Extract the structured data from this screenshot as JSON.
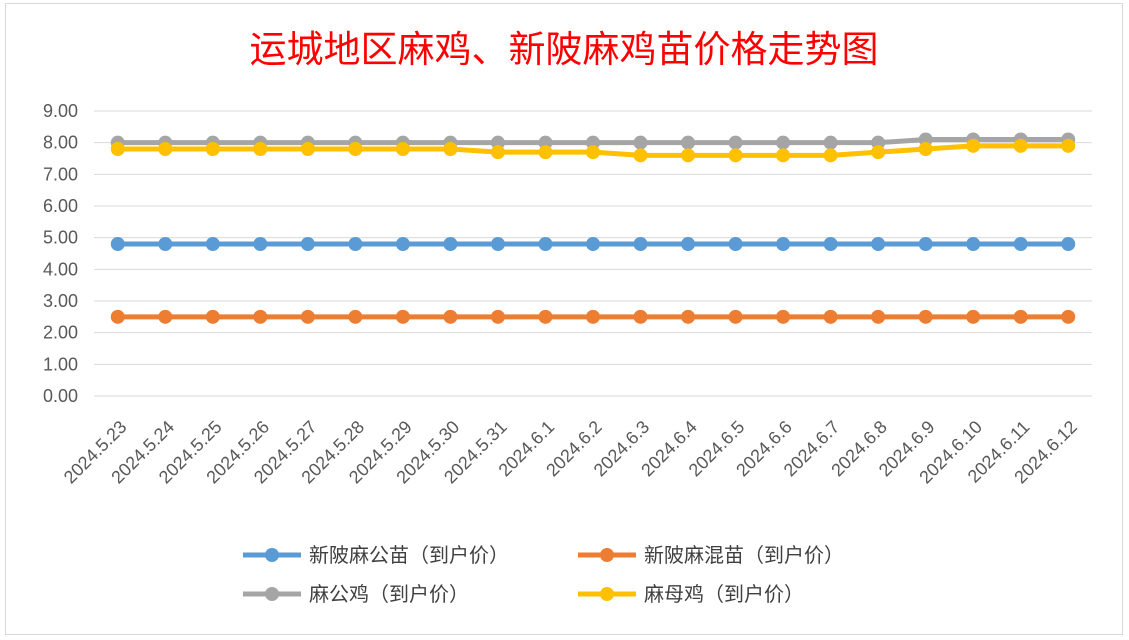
{
  "chart_data": {
    "type": "line",
    "title": "运城地区麻鸡、新陂麻鸡苗价格走势图",
    "xlabel": "",
    "ylabel": "",
    "ylim": [
      0,
      9
    ],
    "ytick_labels": [
      "0.00",
      "1.00",
      "2.00",
      "3.00",
      "4.00",
      "5.00",
      "6.00",
      "7.00",
      "8.00",
      "9.00"
    ],
    "grid": true,
    "legend_position": "bottom",
    "categories": [
      "2024.5.23",
      "2024.5.24",
      "2024.5.25",
      "2024.5.26",
      "2024.5.27",
      "2024.5.28",
      "2024.5.29",
      "2024.5.30",
      "2024.5.31",
      "2024.6.1",
      "2024.6.2",
      "2024.6.3",
      "2024.6.4",
      "2024.6.5",
      "2024.6.6",
      "2024.6.7",
      "2024.6.8",
      "2024.6.9",
      "2024.6.10",
      "2024.6.11",
      "2024.6.12"
    ],
    "series": [
      {
        "name": "新陂麻公苗（到户价）",
        "color": "#5b9bd5",
        "values": [
          4.8,
          4.8,
          4.8,
          4.8,
          4.8,
          4.8,
          4.8,
          4.8,
          4.8,
          4.8,
          4.8,
          4.8,
          4.8,
          4.8,
          4.8,
          4.8,
          4.8,
          4.8,
          4.8,
          4.8,
          4.8
        ]
      },
      {
        "name": "新陂麻混苗（到户价）",
        "color": "#ed7d31",
        "values": [
          2.5,
          2.5,
          2.5,
          2.5,
          2.5,
          2.5,
          2.5,
          2.5,
          2.5,
          2.5,
          2.5,
          2.5,
          2.5,
          2.5,
          2.5,
          2.5,
          2.5,
          2.5,
          2.5,
          2.5,
          2.5
        ]
      },
      {
        "name": "麻公鸡（到户价）",
        "color": "#a5a5a5",
        "values": [
          8.0,
          8.0,
          8.0,
          8.0,
          8.0,
          8.0,
          8.0,
          8.0,
          8.0,
          8.0,
          8.0,
          8.0,
          8.0,
          8.0,
          8.0,
          8.0,
          8.0,
          8.1,
          8.1,
          8.1,
          8.1
        ]
      },
      {
        "name": "麻母鸡（到户价）",
        "color": "#ffc000",
        "values": [
          7.8,
          7.8,
          7.8,
          7.8,
          7.8,
          7.8,
          7.8,
          7.8,
          7.7,
          7.7,
          7.7,
          7.6,
          7.6,
          7.6,
          7.6,
          7.6,
          7.7,
          7.8,
          7.9,
          7.9,
          7.9
        ]
      }
    ]
  }
}
